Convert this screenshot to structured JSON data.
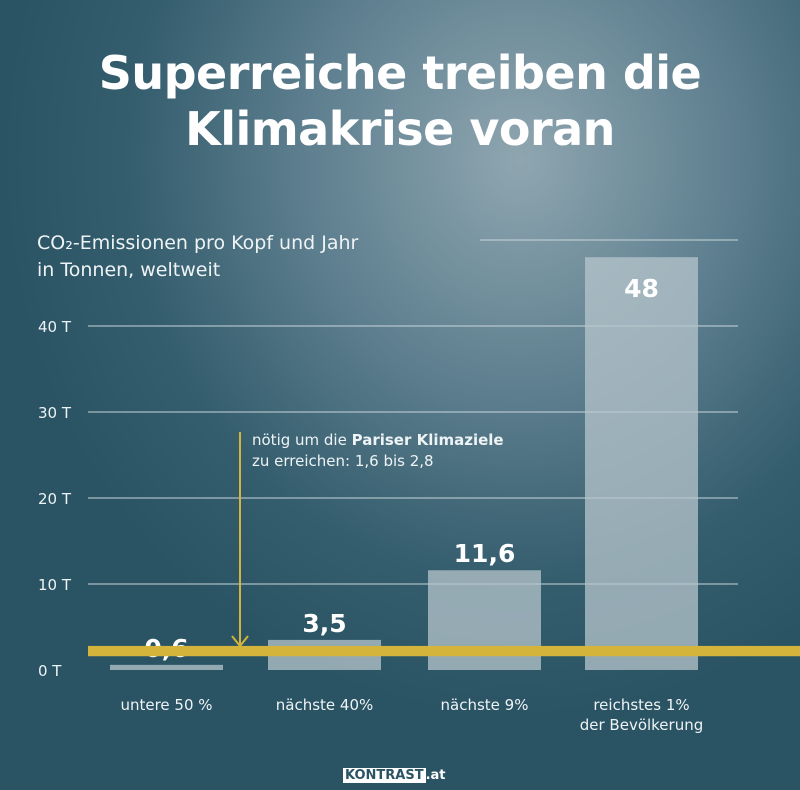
{
  "title": [
    "Superreiche treiben die",
    "Klimakrise voran"
  ],
  "note": {
    "text1": "nötig um die ",
    "bold": "Pariser Klimaziele",
    "text2": "zu erreichen: 1,6 bis 2,8"
  },
  "logo": {
    "main": "KONTRAST",
    "suffix": ".at"
  },
  "colors": {
    "bar": "#b7c6cc",
    "band": "#d4b43a"
  },
  "chart_data": {
    "type": "bar",
    "title": "Superreiche treiben die Klimakrise voran",
    "ylabel_line1": "CO₂-Emissionen pro Kopf und Jahr",
    "ylabel_line2": "in Tonnen, weltweit",
    "categories": [
      [
        "untere 50 %"
      ],
      [
        "nächste 40%"
      ],
      [
        "nächste 9%"
      ],
      [
        "reichstes 1%",
        "der Bevölkerung"
      ]
    ],
    "values": [
      0.6,
      3.5,
      11.6,
      48
    ],
    "value_labels": [
      "0,6",
      "3,5",
      "11,6",
      "48"
    ],
    "yticks": [
      0,
      10,
      20,
      30,
      40
    ],
    "ytick_labels": [
      "0 T",
      "10 T",
      "20 T",
      "30 T",
      "40 T"
    ],
    "ylim": [
      0,
      50
    ],
    "target_band": [
      1.6,
      2.8
    ],
    "grid": true
  }
}
